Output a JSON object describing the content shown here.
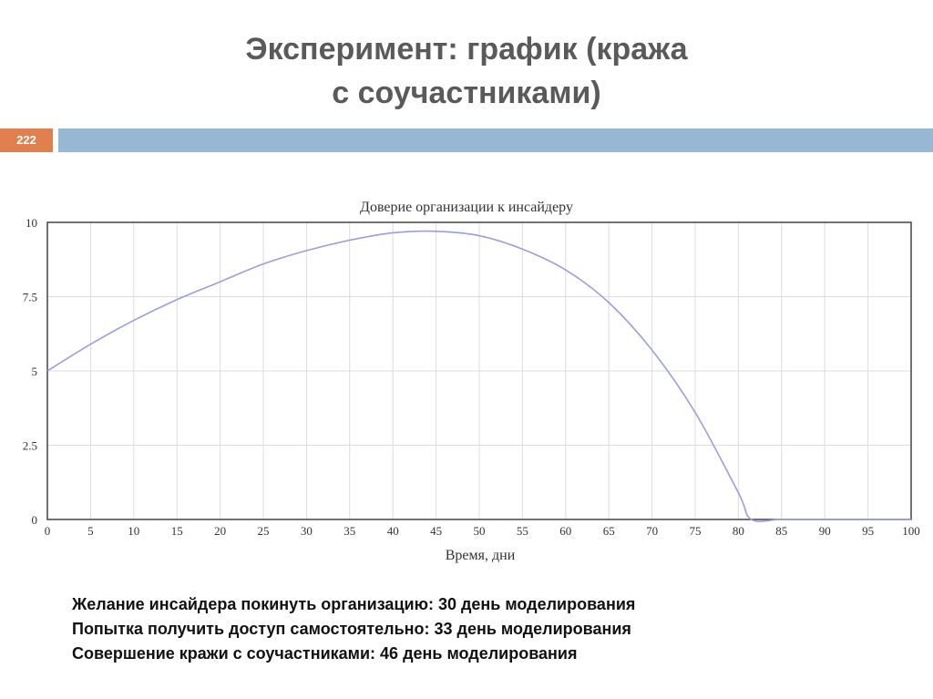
{
  "slide": {
    "title_line1": "Эксперимент: график (кража",
    "title_line2": "с соучастниками)",
    "page_number": "222"
  },
  "notes": [
    "Желание инсайдера покинуть организацию: 30 день моделирования",
    "Попытка получить доступ самостоятельно: 33 день моделирования",
    "Совершение кражи с соучастниками: 46 день моделирования"
  ],
  "colors": {
    "line": "#9c9de0",
    "grid": "#dcdcdc",
    "badge": "#e0804e",
    "header_bar": "#98b7d4"
  },
  "chart_data": {
    "type": "line",
    "title": "Доверие организации к инсайдеру",
    "xlabel": "Время, дни",
    "ylabel": "",
    "xlim": [
      0,
      100
    ],
    "ylim": [
      0,
      10
    ],
    "x_ticks": [
      "0",
      "5",
      "10",
      "15",
      "20",
      "25",
      "30",
      "35",
      "40",
      "45",
      "50",
      "55",
      "60",
      "65",
      "70",
      "75",
      "80",
      "85",
      "90",
      "95",
      "100"
    ],
    "y_ticks": [
      "0",
      "2.5",
      "5",
      "7.5",
      "10"
    ],
    "y_tick_values": [
      0,
      2.5,
      5,
      7.5,
      10
    ],
    "grid": true,
    "series": [
      {
        "x": [
          0,
          5,
          10,
          15,
          20,
          25,
          30,
          35,
          40,
          45,
          50,
          55,
          60,
          65,
          70,
          75,
          80,
          81.5,
          85,
          90,
          95,
          100
        ],
        "values": [
          5.0,
          5.9,
          6.7,
          7.4,
          8.0,
          8.6,
          9.05,
          9.4,
          9.65,
          9.7,
          9.55,
          9.1,
          8.4,
          7.3,
          5.7,
          3.6,
          0.9,
          0.0,
          0.0,
          0.0,
          0.0,
          0.0
        ]
      }
    ]
  }
}
